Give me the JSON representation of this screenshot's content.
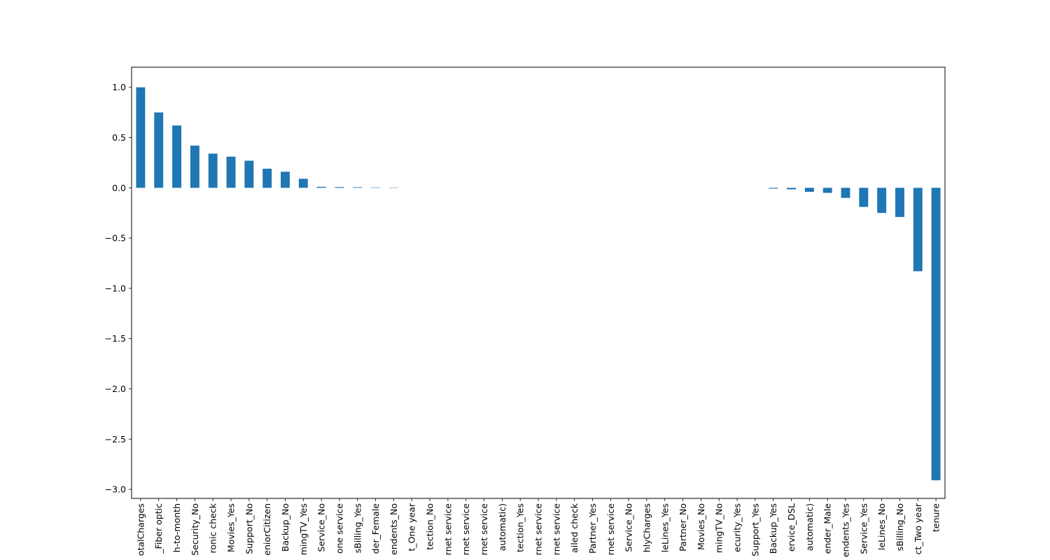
{
  "chart_data": {
    "type": "bar",
    "title": "",
    "xlabel": "",
    "ylabel": "",
    "ylim": [
      -3.09,
      1.2
    ],
    "yticks": [
      1.0,
      0.5,
      0.0,
      -0.5,
      -1.0,
      -1.5,
      -2.0,
      -2.5,
      -3.0
    ],
    "ytick_labels": [
      "1.0",
      "0.5",
      "0.0",
      "−0.5",
      "−1.0",
      "−1.5",
      "−2.0",
      "−2.5",
      "−3.0"
    ],
    "grid": false,
    "legend": "none",
    "bar_color": "#1f77b4",
    "categories": [
      "otalCharges",
      "_Fiber optic",
      "h-to-month",
      "Security_No",
      "ronic check",
      "Movies_Yes",
      "Support_No",
      "eniorCitizen",
      "Backup_No",
      "mingTV_Yes",
      "Service_No",
      "one service",
      "sBilling_Yes",
      "der_Female",
      "endents_No",
      "t_One year",
      "tection_No",
      "rnet service",
      "rnet service",
      "rnet service",
      "automatic)",
      "tection_Yes",
      "rnet service",
      "rnet service",
      "ailed check",
      "Partner_Yes",
      "rnet service",
      "Service_No",
      "hlyCharges",
      "leLines_Yes",
      "Partner_No",
      "Movies_No",
      "mingTV_No",
      "ecurity_Yes",
      "Support_Yes",
      "Backup_Yes",
      "ervice_DSL",
      "automatic)",
      "ender_Male",
      "endents_Yes",
      "Service_Yes",
      "leLines_No",
      "sBilling_No",
      "ct_Two year",
      "tenure"
    ],
    "values": [
      1.0,
      0.75,
      0.62,
      0.42,
      0.34,
      0.31,
      0.27,
      0.19,
      0.16,
      0.09,
      0.01,
      0.008,
      0.006,
      0.004,
      0.003,
      0.0,
      0.0,
      0.0,
      0.0,
      0.0,
      0.0,
      0.0,
      0.0,
      0.0,
      0.0,
      0.0,
      0.0,
      0.0,
      0.0,
      0.0,
      0.0,
      0.0,
      0.0,
      0.0,
      0.0,
      -0.008,
      -0.015,
      -0.04,
      -0.05,
      -0.1,
      -0.19,
      -0.25,
      -0.29,
      -0.83,
      -2.91
    ]
  }
}
